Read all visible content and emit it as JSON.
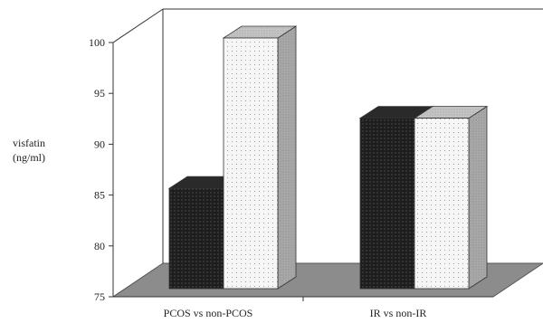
{
  "chart_data": {
    "type": "bar",
    "style": "3d",
    "categories": [
      "PCOS vs non-PCOS",
      "IR vs non-IR"
    ],
    "series": [
      {
        "values": [
          85,
          92
        ],
        "pattern": "dense-dots",
        "color": "#1e1e1e"
      },
      {
        "values": [
          100,
          92
        ],
        "pattern": "light-dots",
        "color": "#f4f4f4"
      }
    ],
    "ylabel": [
      "visfatin",
      "(ng/ml)"
    ],
    "ylim": [
      75,
      100
    ],
    "yticks": [
      75,
      80,
      85,
      90,
      95,
      100
    ],
    "floor_color": "#8c8c8c",
    "side_color": "#a8a8a8",
    "grid": false,
    "legend": "none"
  }
}
